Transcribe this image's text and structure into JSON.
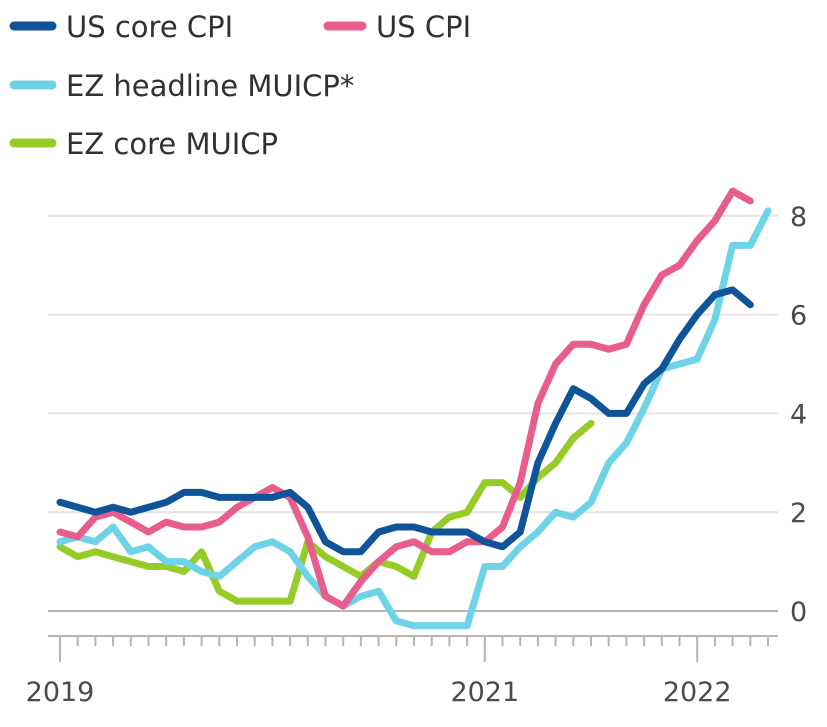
{
  "chart_data": {
    "type": "line",
    "title": "",
    "xlabel": "",
    "ylabel": "",
    "x_start": "2019-01",
    "x_end": "2022-04",
    "x_ticks": [
      {
        "date": "2019-01",
        "label": "2019"
      },
      {
        "date": "2021-01",
        "label": "2021"
      },
      {
        "date": "2022-01",
        "label": "2022"
      }
    ],
    "y_ticks": [
      0,
      2,
      4,
      6,
      8
    ],
    "ylim": [
      -0.5,
      8.5
    ],
    "grid": true,
    "legend_position": "top-left",
    "series": [
      {
        "name": "US core CPI",
        "color": "#0f5499",
        "points": [
          [
            "2019-01",
            2.2
          ],
          [
            "2019-02",
            2.1
          ],
          [
            "2019-03",
            2.0
          ],
          [
            "2019-04",
            2.1
          ],
          [
            "2019-05",
            2.0
          ],
          [
            "2019-06",
            2.1
          ],
          [
            "2019-07",
            2.2
          ],
          [
            "2019-08",
            2.4
          ],
          [
            "2019-09",
            2.4
          ],
          [
            "2019-10",
            2.3
          ],
          [
            "2019-11",
            2.3
          ],
          [
            "2019-12",
            2.3
          ],
          [
            "2020-01",
            2.3
          ],
          [
            "2020-02",
            2.4
          ],
          [
            "2020-03",
            2.1
          ],
          [
            "2020-04",
            1.4
          ],
          [
            "2020-05",
            1.2
          ],
          [
            "2020-06",
            1.2
          ],
          [
            "2020-07",
            1.6
          ],
          [
            "2020-08",
            1.7
          ],
          [
            "2020-09",
            1.7
          ],
          [
            "2020-10",
            1.6
          ],
          [
            "2020-11",
            1.6
          ],
          [
            "2020-12",
            1.6
          ],
          [
            "2021-01",
            1.4
          ],
          [
            "2021-02",
            1.3
          ],
          [
            "2021-03",
            1.6
          ],
          [
            "2021-04",
            3.0
          ],
          [
            "2021-05",
            3.8
          ],
          [
            "2021-06",
            4.5
          ],
          [
            "2021-07",
            4.3
          ],
          [
            "2021-08",
            4.0
          ],
          [
            "2021-09",
            4.0
          ],
          [
            "2021-10",
            4.6
          ],
          [
            "2021-11",
            4.9
          ],
          [
            "2021-12",
            5.5
          ],
          [
            "2022-01",
            6.0
          ],
          [
            "2022-02",
            6.4
          ],
          [
            "2022-03",
            6.5
          ],
          [
            "2022-04",
            6.2
          ]
        ]
      },
      {
        "name": "US CPI",
        "color": "#e95d8c",
        "points": [
          [
            "2019-01",
            1.6
          ],
          [
            "2019-02",
            1.5
          ],
          [
            "2019-03",
            1.9
          ],
          [
            "2019-04",
            2.0
          ],
          [
            "2019-05",
            1.8
          ],
          [
            "2019-06",
            1.6
          ],
          [
            "2019-07",
            1.8
          ],
          [
            "2019-08",
            1.7
          ],
          [
            "2019-09",
            1.7
          ],
          [
            "2019-10",
            1.8
          ],
          [
            "2019-11",
            2.1
          ],
          [
            "2019-12",
            2.3
          ],
          [
            "2020-01",
            2.5
          ],
          [
            "2020-02",
            2.3
          ],
          [
            "2020-03",
            1.5
          ],
          [
            "2020-04",
            0.3
          ],
          [
            "2020-05",
            0.1
          ],
          [
            "2020-06",
            0.6
          ],
          [
            "2020-07",
            1.0
          ],
          [
            "2020-08",
            1.3
          ],
          [
            "2020-09",
            1.4
          ],
          [
            "2020-10",
            1.2
          ],
          [
            "2020-11",
            1.2
          ],
          [
            "2020-12",
            1.4
          ],
          [
            "2021-01",
            1.4
          ],
          [
            "2021-02",
            1.7
          ],
          [
            "2021-03",
            2.6
          ],
          [
            "2021-04",
            4.2
          ],
          [
            "2021-05",
            5.0
          ],
          [
            "2021-06",
            5.4
          ],
          [
            "2021-07",
            5.4
          ],
          [
            "2021-08",
            5.3
          ],
          [
            "2021-09",
            5.4
          ],
          [
            "2021-10",
            6.2
          ],
          [
            "2021-11",
            6.8
          ],
          [
            "2021-12",
            7.0
          ],
          [
            "2022-01",
            7.5
          ],
          [
            "2022-02",
            7.9
          ],
          [
            "2022-03",
            8.5
          ],
          [
            "2022-04",
            8.3
          ]
        ]
      },
      {
        "name": "EZ headline MUICP*",
        "color": "#6fd3e8",
        "points": [
          [
            "2019-01",
            1.4
          ],
          [
            "2019-02",
            1.5
          ],
          [
            "2019-03",
            1.4
          ],
          [
            "2019-04",
            1.7
          ],
          [
            "2019-05",
            1.2
          ],
          [
            "2019-06",
            1.3
          ],
          [
            "2019-07",
            1.0
          ],
          [
            "2019-08",
            1.0
          ],
          [
            "2019-09",
            0.8
          ],
          [
            "2019-10",
            0.7
          ],
          [
            "2019-11",
            1.0
          ],
          [
            "2019-12",
            1.3
          ],
          [
            "2020-01",
            1.4
          ],
          [
            "2020-02",
            1.2
          ],
          [
            "2020-03",
            0.7
          ],
          [
            "2020-04",
            0.3
          ],
          [
            "2020-05",
            0.1
          ],
          [
            "2020-06",
            0.3
          ],
          [
            "2020-07",
            0.4
          ],
          [
            "2020-08",
            -0.2
          ],
          [
            "2020-09",
            -0.3
          ],
          [
            "2020-10",
            -0.3
          ],
          [
            "2020-11",
            -0.3
          ],
          [
            "2020-12",
            -0.3
          ],
          [
            "2021-01",
            0.9
          ],
          [
            "2021-02",
            0.9
          ],
          [
            "2021-03",
            1.3
          ],
          [
            "2021-04",
            1.6
          ],
          [
            "2021-05",
            2.0
          ],
          [
            "2021-06",
            1.9
          ],
          [
            "2021-07",
            2.2
          ],
          [
            "2021-08",
            3.0
          ],
          [
            "2021-09",
            3.4
          ],
          [
            "2021-10",
            4.1
          ],
          [
            "2021-11",
            4.9
          ],
          [
            "2021-12",
            5.0
          ],
          [
            "2022-01",
            5.1
          ],
          [
            "2022-02",
            5.9
          ],
          [
            "2022-03",
            7.4
          ],
          [
            "2022-04",
            7.4
          ],
          [
            "2022-05",
            8.1
          ]
        ]
      },
      {
        "name": "EZ core MUICP",
        "color": "#96cc28",
        "points": [
          [
            "2019-01",
            1.3
          ],
          [
            "2019-02",
            1.1
          ],
          [
            "2019-03",
            1.2
          ],
          [
            "2019-04",
            1.1
          ],
          [
            "2019-05",
            1.0
          ],
          [
            "2019-06",
            0.9
          ],
          [
            "2019-07",
            0.9
          ],
          [
            "2019-08",
            0.8
          ],
          [
            "2019-09",
            1.2
          ],
          [
            "2019-10",
            0.4
          ],
          [
            "2019-11",
            0.2
          ],
          [
            "2019-12",
            0.2
          ],
          [
            "2020-01",
            0.2
          ],
          [
            "2020-02",
            0.2
          ],
          [
            "2020-03",
            1.4
          ],
          [
            "2020-04",
            1.1
          ],
          [
            "2020-05",
            0.9
          ],
          [
            "2020-06",
            0.7
          ],
          [
            "2020-07",
            1.0
          ],
          [
            "2020-08",
            0.9
          ],
          [
            "2020-09",
            0.7
          ],
          [
            "2020-10",
            1.6
          ],
          [
            "2020-11",
            1.9
          ],
          [
            "2020-12",
            2.0
          ],
          [
            "2021-01",
            2.6
          ],
          [
            "2021-02",
            2.6
          ],
          [
            "2021-03",
            2.3
          ],
          [
            "2021-04",
            2.7
          ],
          [
            "2021-05",
            3.0
          ],
          [
            "2021-06",
            3.5
          ],
          [
            "2021-07",
            3.8
          ]
        ]
      }
    ]
  }
}
